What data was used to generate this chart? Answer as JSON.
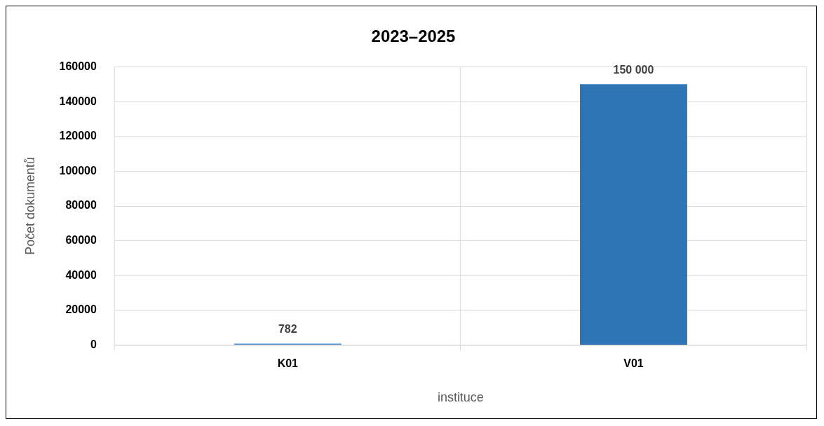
{
  "chart_data": {
    "type": "bar",
    "title": "2023–2025",
    "xlabel": "instituce",
    "ylabel": "Počet dokumentů",
    "categories": [
      "K01",
      "V01"
    ],
    "values": [
      782,
      150000
    ],
    "colors": [
      "#4f8fd0",
      "#2e75b6"
    ],
    "value_labels": [
      "782",
      "150 000"
    ],
    "ylim": [
      0,
      160000
    ],
    "yticks": [
      0,
      20000,
      40000,
      60000,
      80000,
      100000,
      120000,
      140000,
      160000
    ],
    "grid": true,
    "legend": false
  }
}
